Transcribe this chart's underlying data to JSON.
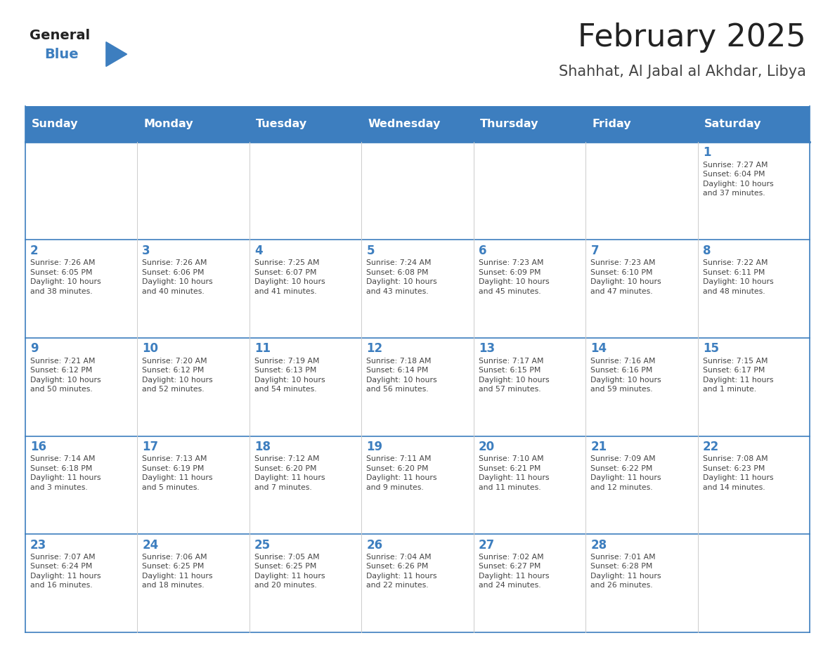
{
  "title": "February 2025",
  "subtitle": "Shahhat, Al Jabal al Akhdar, Libya",
  "days_of_week": [
    "Sunday",
    "Monday",
    "Tuesday",
    "Wednesday",
    "Thursday",
    "Friday",
    "Saturday"
  ],
  "header_bg_color": "#3d7ebf",
  "header_text_color": "#ffffff",
  "cell_bg_color": "#ffffff",
  "grid_line_color": "#3d7ebf",
  "day_number_color": "#3d7ebf",
  "cell_text_color": "#444444",
  "title_color": "#222222",
  "subtitle_color": "#444444",
  "logo_general_color": "#222222",
  "logo_blue_color": "#3d7ebf",
  "weeks": [
    [
      {
        "day": null,
        "info": null
      },
      {
        "day": null,
        "info": null
      },
      {
        "day": null,
        "info": null
      },
      {
        "day": null,
        "info": null
      },
      {
        "day": null,
        "info": null
      },
      {
        "day": null,
        "info": null
      },
      {
        "day": 1,
        "info": "Sunrise: 7:27 AM\nSunset: 6:04 PM\nDaylight: 10 hours\nand 37 minutes."
      }
    ],
    [
      {
        "day": 2,
        "info": "Sunrise: 7:26 AM\nSunset: 6:05 PM\nDaylight: 10 hours\nand 38 minutes."
      },
      {
        "day": 3,
        "info": "Sunrise: 7:26 AM\nSunset: 6:06 PM\nDaylight: 10 hours\nand 40 minutes."
      },
      {
        "day": 4,
        "info": "Sunrise: 7:25 AM\nSunset: 6:07 PM\nDaylight: 10 hours\nand 41 minutes."
      },
      {
        "day": 5,
        "info": "Sunrise: 7:24 AM\nSunset: 6:08 PM\nDaylight: 10 hours\nand 43 minutes."
      },
      {
        "day": 6,
        "info": "Sunrise: 7:23 AM\nSunset: 6:09 PM\nDaylight: 10 hours\nand 45 minutes."
      },
      {
        "day": 7,
        "info": "Sunrise: 7:23 AM\nSunset: 6:10 PM\nDaylight: 10 hours\nand 47 minutes."
      },
      {
        "day": 8,
        "info": "Sunrise: 7:22 AM\nSunset: 6:11 PM\nDaylight: 10 hours\nand 48 minutes."
      }
    ],
    [
      {
        "day": 9,
        "info": "Sunrise: 7:21 AM\nSunset: 6:12 PM\nDaylight: 10 hours\nand 50 minutes."
      },
      {
        "day": 10,
        "info": "Sunrise: 7:20 AM\nSunset: 6:12 PM\nDaylight: 10 hours\nand 52 minutes."
      },
      {
        "day": 11,
        "info": "Sunrise: 7:19 AM\nSunset: 6:13 PM\nDaylight: 10 hours\nand 54 minutes."
      },
      {
        "day": 12,
        "info": "Sunrise: 7:18 AM\nSunset: 6:14 PM\nDaylight: 10 hours\nand 56 minutes."
      },
      {
        "day": 13,
        "info": "Sunrise: 7:17 AM\nSunset: 6:15 PM\nDaylight: 10 hours\nand 57 minutes."
      },
      {
        "day": 14,
        "info": "Sunrise: 7:16 AM\nSunset: 6:16 PM\nDaylight: 10 hours\nand 59 minutes."
      },
      {
        "day": 15,
        "info": "Sunrise: 7:15 AM\nSunset: 6:17 PM\nDaylight: 11 hours\nand 1 minute."
      }
    ],
    [
      {
        "day": 16,
        "info": "Sunrise: 7:14 AM\nSunset: 6:18 PM\nDaylight: 11 hours\nand 3 minutes."
      },
      {
        "day": 17,
        "info": "Sunrise: 7:13 AM\nSunset: 6:19 PM\nDaylight: 11 hours\nand 5 minutes."
      },
      {
        "day": 18,
        "info": "Sunrise: 7:12 AM\nSunset: 6:20 PM\nDaylight: 11 hours\nand 7 minutes."
      },
      {
        "day": 19,
        "info": "Sunrise: 7:11 AM\nSunset: 6:20 PM\nDaylight: 11 hours\nand 9 minutes."
      },
      {
        "day": 20,
        "info": "Sunrise: 7:10 AM\nSunset: 6:21 PM\nDaylight: 11 hours\nand 11 minutes."
      },
      {
        "day": 21,
        "info": "Sunrise: 7:09 AM\nSunset: 6:22 PM\nDaylight: 11 hours\nand 12 minutes."
      },
      {
        "day": 22,
        "info": "Sunrise: 7:08 AM\nSunset: 6:23 PM\nDaylight: 11 hours\nand 14 minutes."
      }
    ],
    [
      {
        "day": 23,
        "info": "Sunrise: 7:07 AM\nSunset: 6:24 PM\nDaylight: 11 hours\nand 16 minutes."
      },
      {
        "day": 24,
        "info": "Sunrise: 7:06 AM\nSunset: 6:25 PM\nDaylight: 11 hours\nand 18 minutes."
      },
      {
        "day": 25,
        "info": "Sunrise: 7:05 AM\nSunset: 6:25 PM\nDaylight: 11 hours\nand 20 minutes."
      },
      {
        "day": 26,
        "info": "Sunrise: 7:04 AM\nSunset: 6:26 PM\nDaylight: 11 hours\nand 22 minutes."
      },
      {
        "day": 27,
        "info": "Sunrise: 7:02 AM\nSunset: 6:27 PM\nDaylight: 11 hours\nand 24 minutes."
      },
      {
        "day": 28,
        "info": "Sunrise: 7:01 AM\nSunset: 6:28 PM\nDaylight: 11 hours\nand 26 minutes."
      },
      {
        "day": null,
        "info": null
      }
    ]
  ],
  "figsize": [
    11.88,
    9.18
  ],
  "dpi": 100
}
